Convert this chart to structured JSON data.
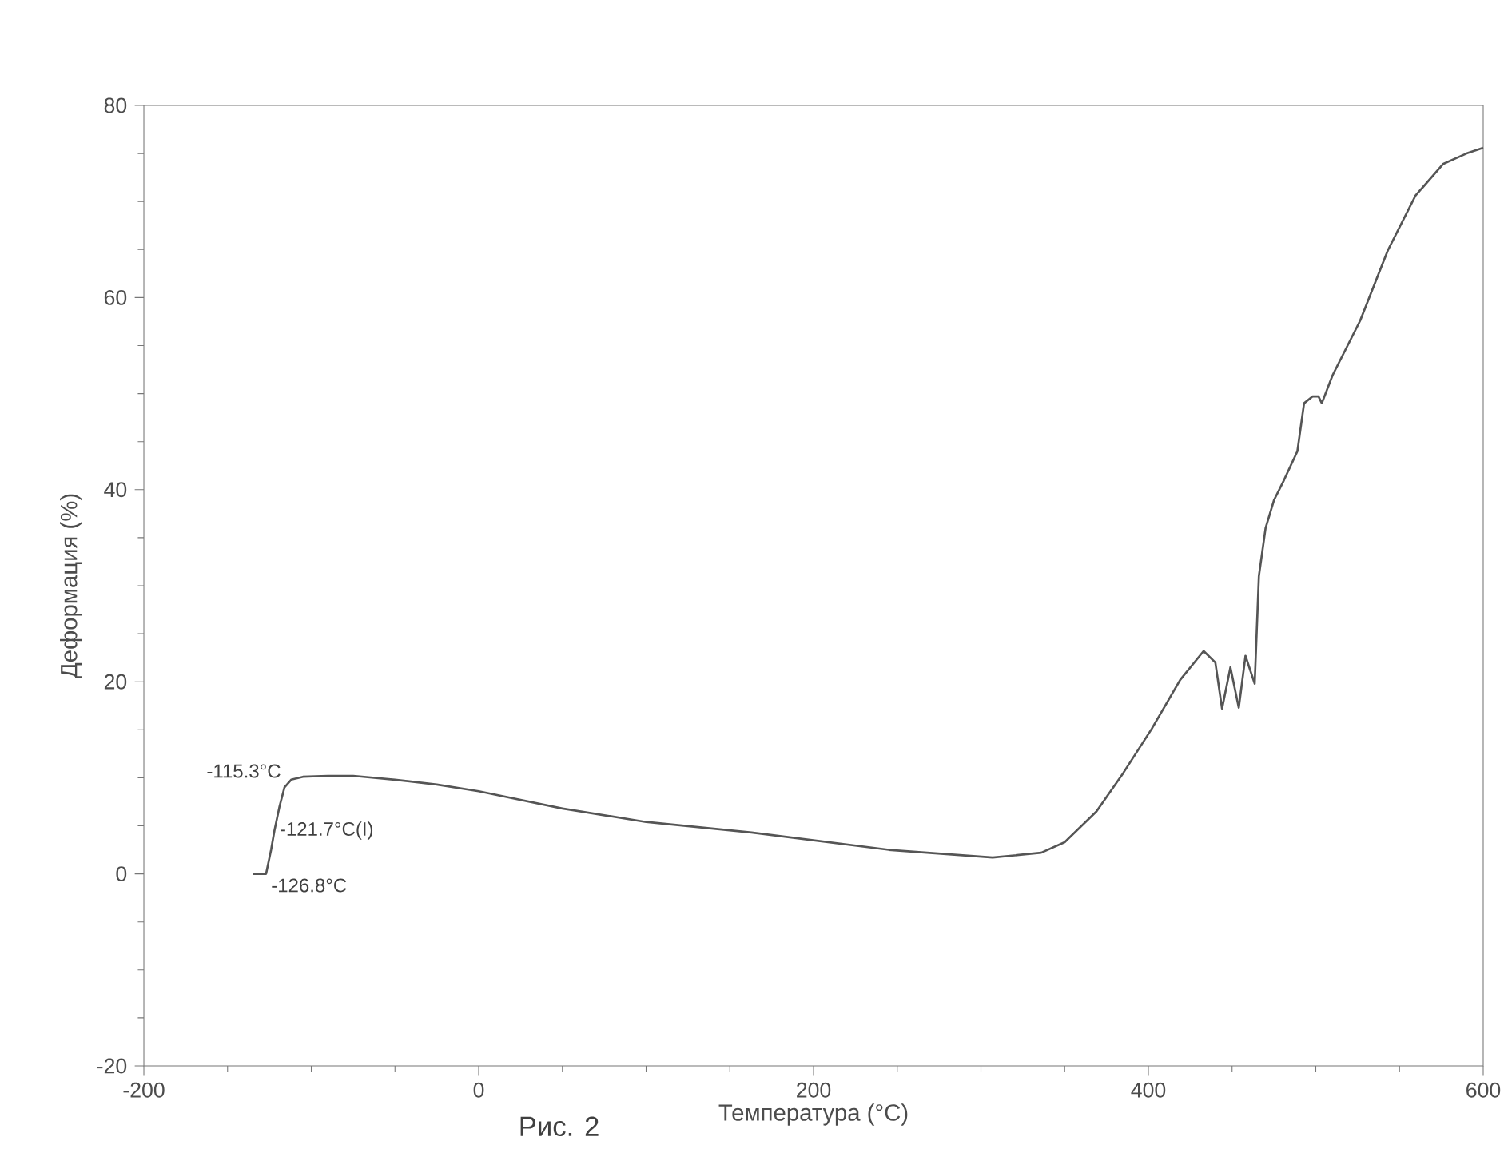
{
  "chart_data": {
    "type": "line",
    "xlabel": "Температура (°C)",
    "ylabel": "Деформация (%)",
    "x": [
      -135,
      -127,
      -124,
      -122,
      -119,
      -116,
      -112,
      -105,
      -90,
      -75,
      -50,
      -25,
      0,
      50,
      100,
      163,
      245,
      307,
      336,
      350,
      369,
      385,
      402,
      419,
      433,
      440,
      444,
      449,
      454,
      458,
      463.5,
      466,
      470,
      475,
      481,
      489,
      493,
      498,
      501.6,
      503.6,
      510,
      526.5,
      543,
      559.5,
      576,
      590,
      600
    ],
    "values": [
      0,
      0,
      2.5,
      4.5,
      7,
      9,
      9.8,
      10.1,
      10.2,
      10.2,
      9.8,
      9.3,
      8.6,
      6.8,
      5.4,
      4.3,
      2.5,
      1.7,
      2.2,
      3.3,
      6.5,
      10.5,
      15.1,
      20.2,
      23.2,
      22,
      17.2,
      21.5,
      17.3,
      22.7,
      19.8,
      31,
      36,
      38.9,
      41,
      44,
      49,
      49.7,
      49.7,
      49,
      51.9,
      57.6,
      64.9,
      70.6,
      73.9,
      75,
      75.6
    ],
    "color": "#555555",
    "xlim": [
      -200,
      600
    ],
    "ylim": [
      -20,
      80
    ],
    "xticks": [
      -200,
      0,
      200,
      400,
      600
    ],
    "yticks": [
      -20,
      0,
      20,
      40,
      60,
      80
    ],
    "annotations": [
      {
        "text": "-115.3°C",
        "x": -115.3,
        "y": 9.5
      },
      {
        "text": "-121.7°C(I)",
        "x": -121.7,
        "y": 4.5
      },
      {
        "text": "-126.8°C",
        "x": -126.8,
        "y": 0
      },
      "Рис. 2"
    ]
  }
}
